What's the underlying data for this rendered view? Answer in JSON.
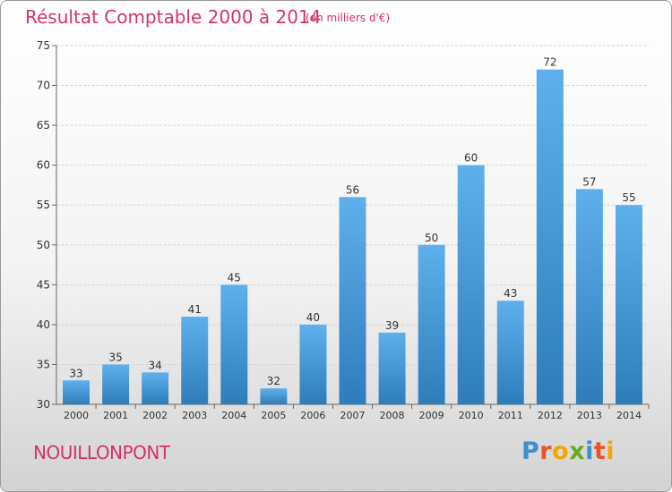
{
  "header": {
    "title": "Résultat Comptable 2000 à 2014",
    "subtitle": "(en milliers d'€)"
  },
  "footer": {
    "commune": "NOUILLONPONT",
    "logo_text": "Proxiti"
  },
  "colors": {
    "title": "#d2336a",
    "bar_light": "#5eb0ec",
    "bar_dark": "#2e7dbb",
    "logo": [
      "#3d8fd0",
      "#e8532a",
      "#f3a800",
      "#6aaa1e",
      "#3d8fd0",
      "#e8532a",
      "#f3a800"
    ]
  },
  "chart_data": {
    "type": "bar",
    "title": "Résultat Comptable 2000 à 2014",
    "unit": "(en milliers d'€)",
    "categories": [
      "2000",
      "2001",
      "2002",
      "2003",
      "2004",
      "2005",
      "2006",
      "2007",
      "2008",
      "2009",
      "2010",
      "2011",
      "2012",
      "2013",
      "2014"
    ],
    "values": [
      33,
      35,
      34,
      41,
      45,
      32,
      40,
      56,
      39,
      50,
      60,
      43,
      72,
      57,
      55
    ],
    "ylim": [
      30,
      75
    ],
    "yticks": [
      30,
      35,
      40,
      45,
      50,
      55,
      60,
      65,
      70,
      75
    ],
    "grid": true,
    "legend": "none"
  }
}
